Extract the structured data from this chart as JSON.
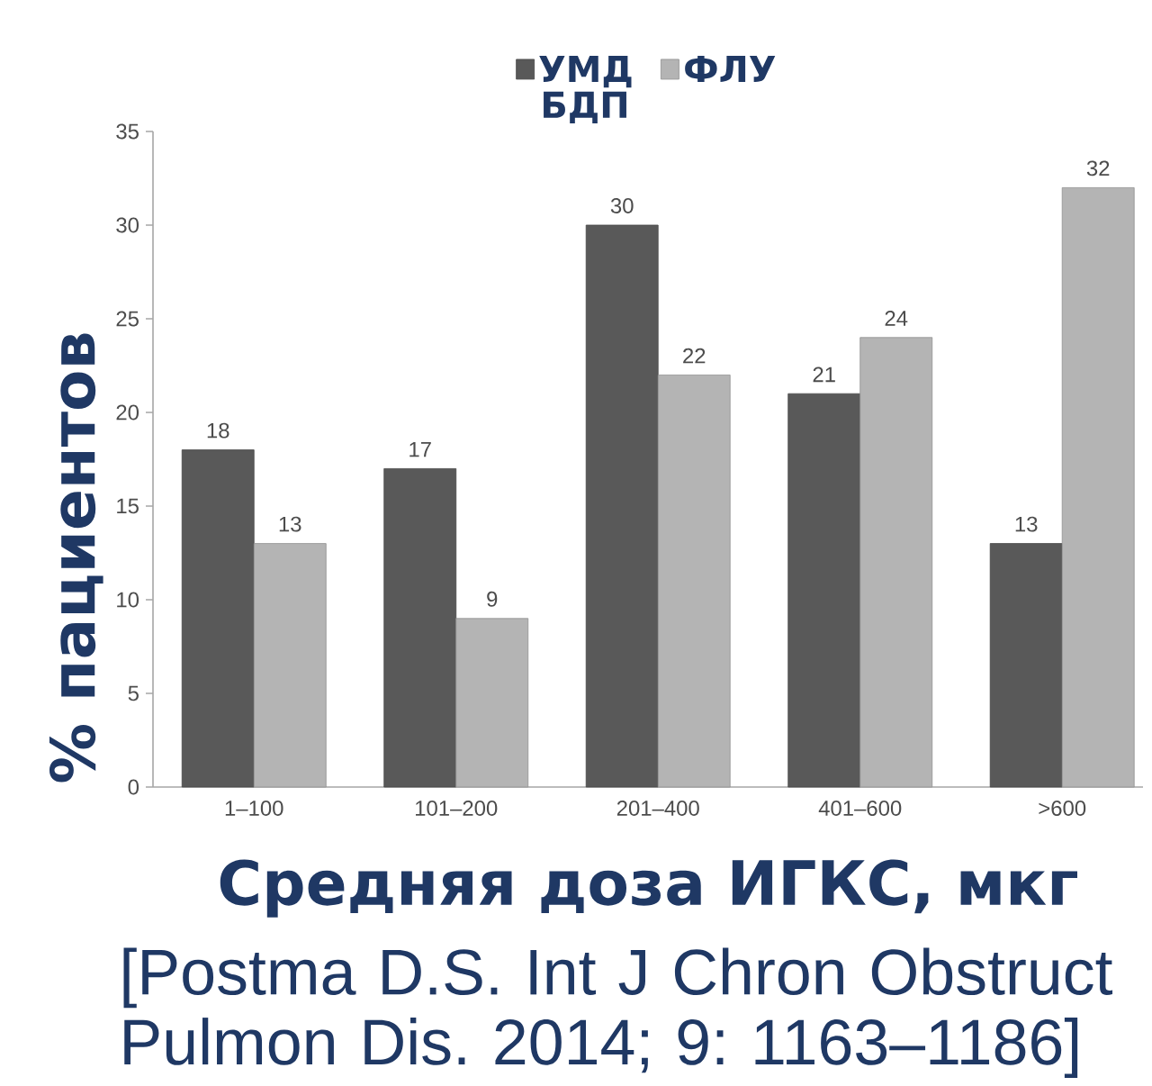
{
  "chart_data": {
    "type": "bar",
    "xlabel": "Средняя доза ИГКС, мкг",
    "ylabel": "% пациентов",
    "categories": [
      "1–100",
      "101–200",
      "201–400",
      "401–600",
      ">600"
    ],
    "series": [
      {
        "name": "УМД БДП",
        "color": "#595959",
        "values": [
          18,
          17,
          30,
          21,
          13
        ]
      },
      {
        "name": "ФЛУ",
        "color": "#b4b4b4",
        "values": [
          13,
          9,
          22,
          24,
          32
        ]
      }
    ],
    "ylim": [
      0,
      35
    ],
    "yticks": [
      0,
      5,
      10,
      15,
      20,
      25,
      30,
      35
    ],
    "data_labels": true,
    "legend": "top",
    "annotations": [
      "[Postma D.S. Int J Chron Obstruct Pulmon Dis. 2014; 9: 1163–1186]"
    ]
  }
}
